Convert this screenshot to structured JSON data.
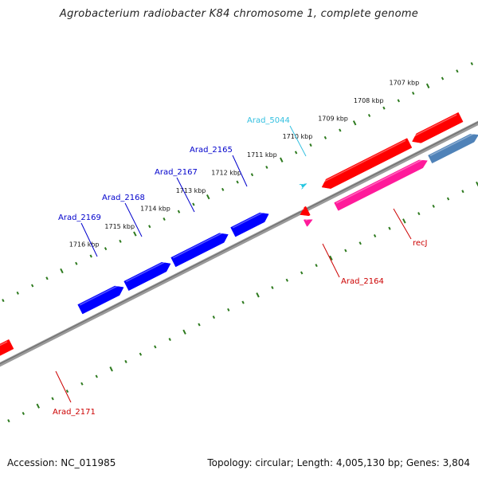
{
  "title": "Agrobacterium radiobacter K84 chromosome 1, complete genome",
  "footer": {
    "accession": "Accession: NC_011985",
    "summary": "Topology: circular; Length: 4,005,130 bp; Genes: 3,804"
  },
  "colors": {
    "backbone": "#808080",
    "tick": "#2d7a1e",
    "forward_red": "#ff0000",
    "reverse_red": "#ff0000",
    "blue": "#0000ff",
    "steelblue": "#4f82b8",
    "pink": "#ff1a9a",
    "cyan": "#22c6e0",
    "label_blue": "#0000cc",
    "label_red": "#cc0000",
    "label_cyan": "#33c0e0"
  },
  "kbp_labels": [
    "1707 kbp",
    "1708 kbp",
    "1709 kbp",
    "1710 kbp",
    "1711 kbp",
    "1712 kbp",
    "1713 kbp",
    "1714 kbp",
    "1715 kbp",
    "1716 kbp"
  ],
  "gene_labels": [
    {
      "id": "Arad_5044",
      "color": "cyan"
    },
    {
      "id": "Arad_2165",
      "color": "blue"
    },
    {
      "id": "Arad_2167",
      "color": "blue"
    },
    {
      "id": "Arad_2168",
      "color": "blue"
    },
    {
      "id": "Arad_2169",
      "color": "blue"
    },
    {
      "id": "recJ",
      "color": "red"
    },
    {
      "id": "Arad_2164",
      "color": "red"
    },
    {
      "id": "Arad_2171",
      "color": "red"
    }
  ]
}
